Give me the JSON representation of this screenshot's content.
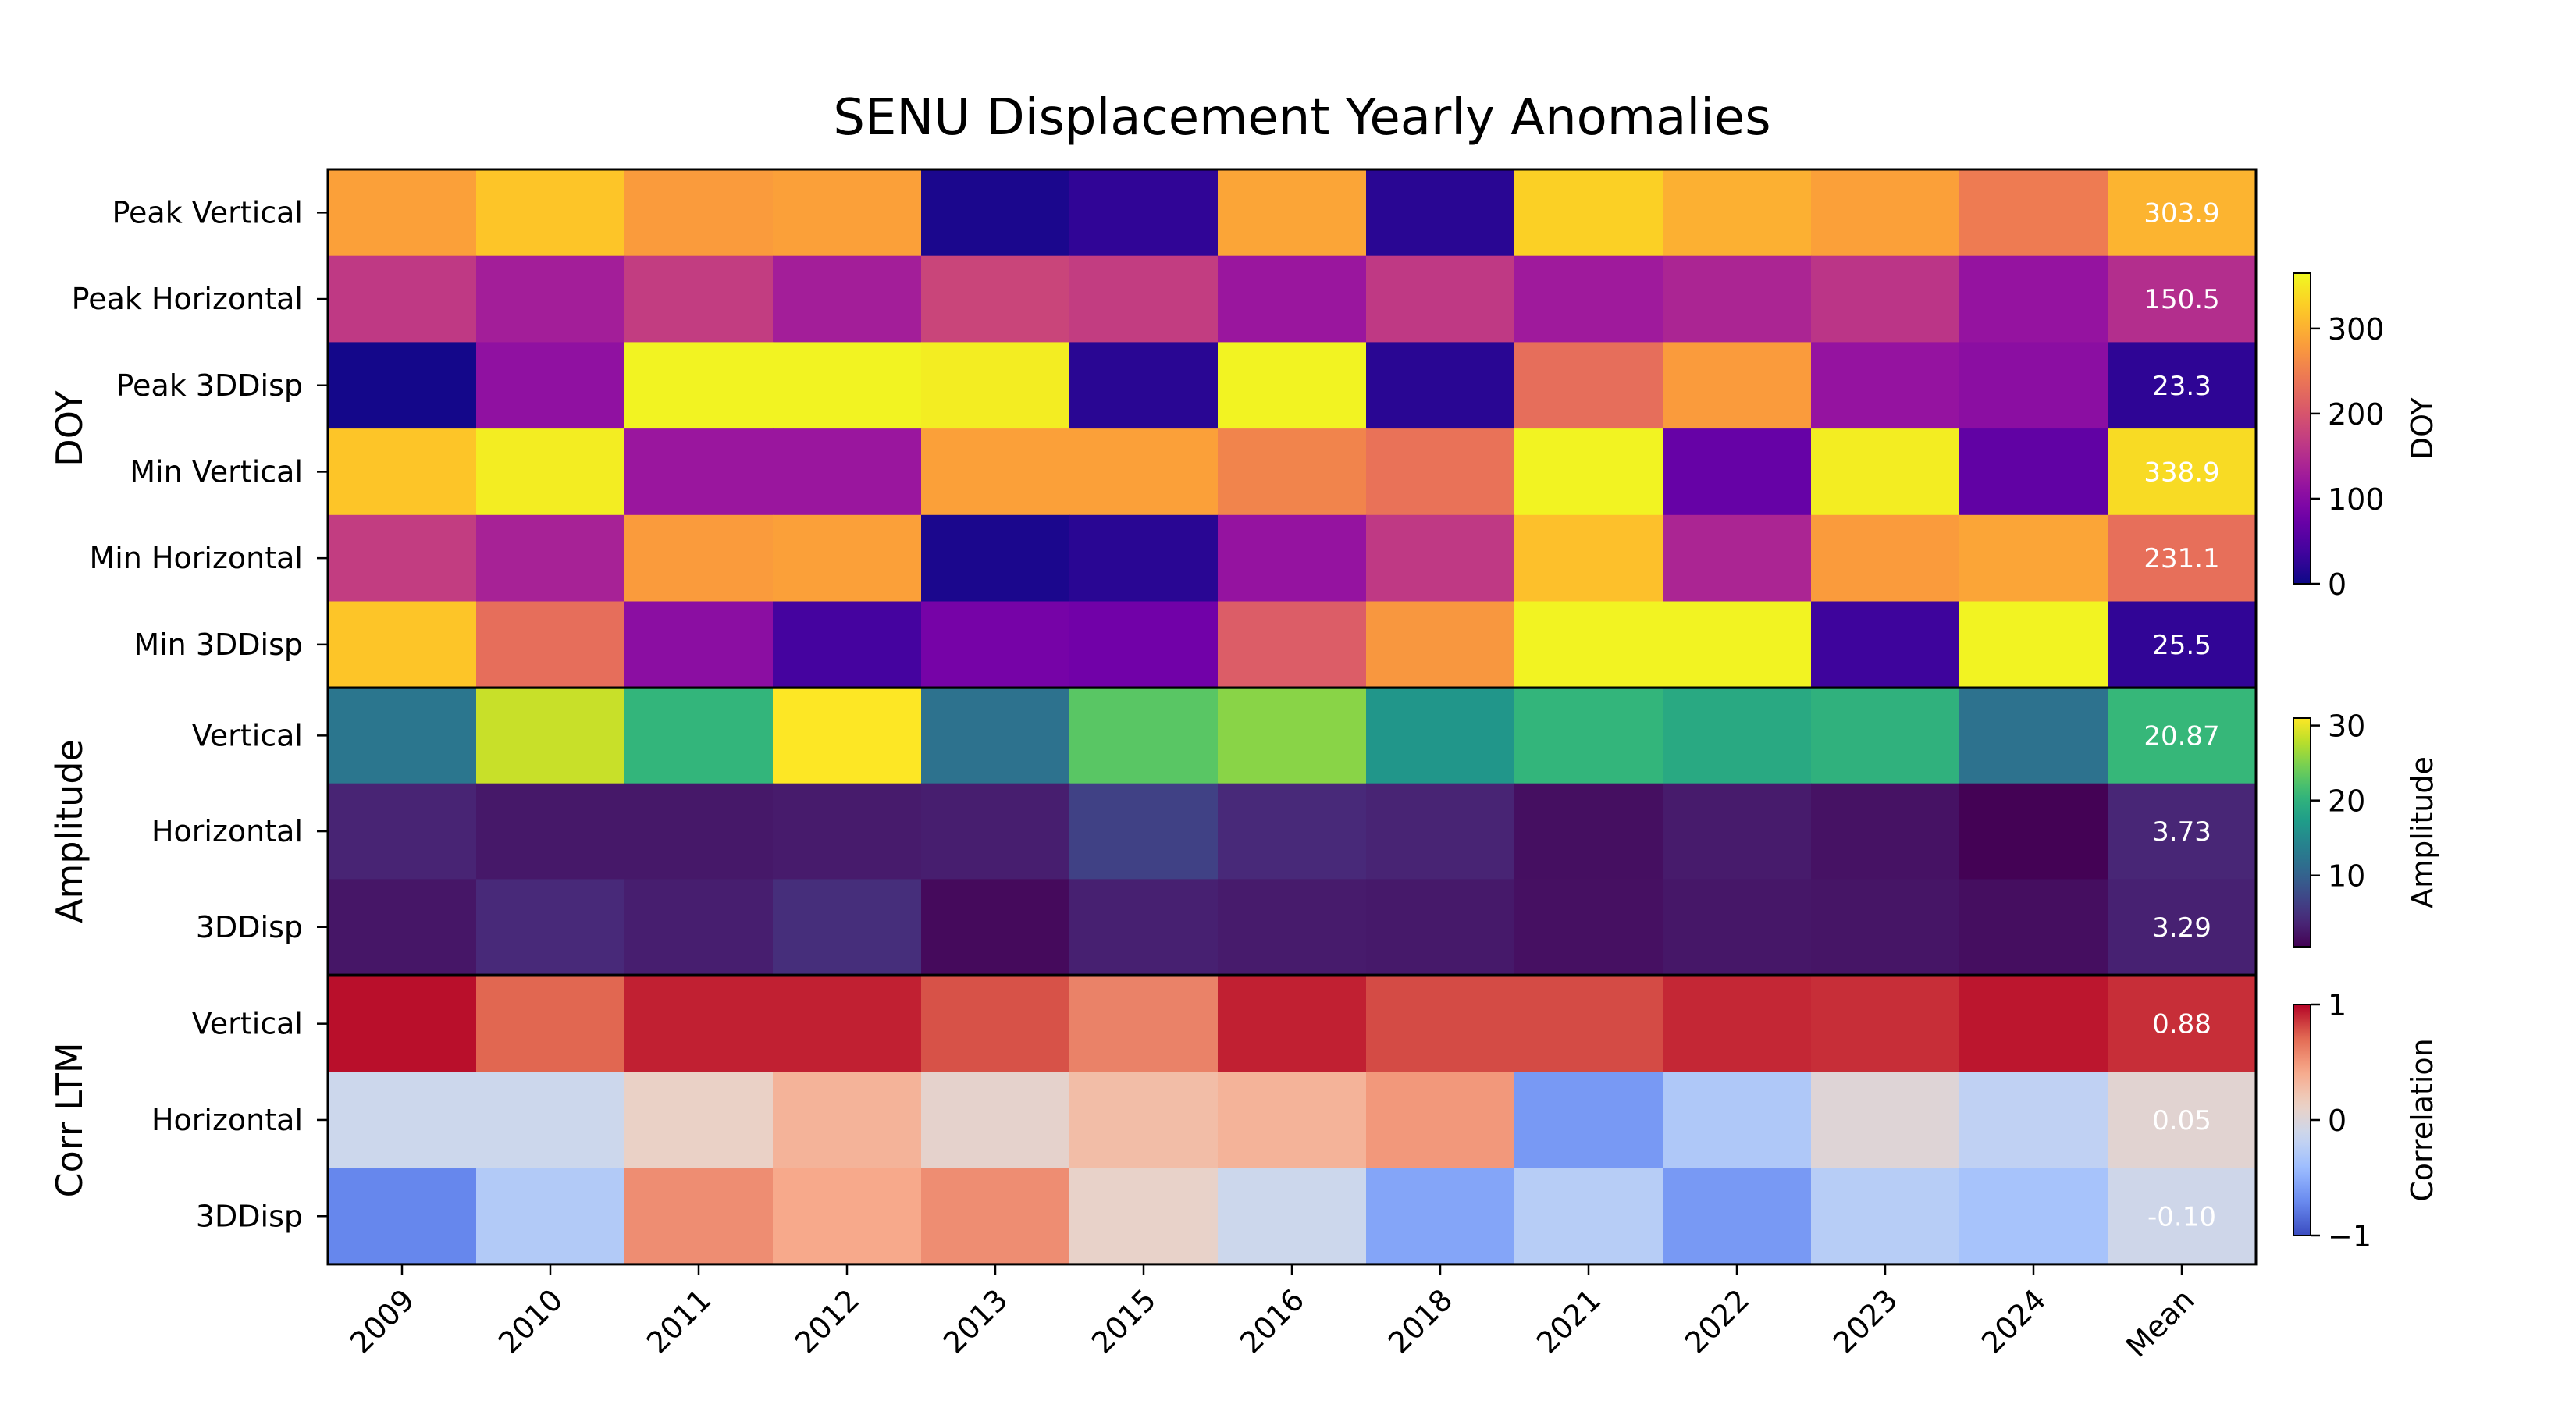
{
  "chart_data": {
    "type": "heatmap",
    "title": "SENU Displacement Yearly Anomalies",
    "x_tick_labels": [
      "2009",
      "2010",
      "2011",
      "2012",
      "2013",
      "2015",
      "2016",
      "2018",
      "2021",
      "2022",
      "2023",
      "2024",
      "Mean"
    ],
    "panels": [
      {
        "group_label": "DOY",
        "colormap": "plasma",
        "colorbar": {
          "label": "DOY",
          "range": [
            0,
            365
          ],
          "ticks": [
            "0",
            "100",
            "200",
            "300"
          ],
          "tick_values": [
            0,
            100,
            200,
            300
          ]
        },
        "rows": [
          {
            "label": "Peak Vertical",
            "values": [
              285,
              320,
              280,
              285,
              10,
              25,
              290,
              20,
              330,
              300,
              285,
              245,
              303.9
            ],
            "mean_label": "303.9"
          },
          {
            "label": "Peak Horizontal",
            "values": [
              165,
              130,
              170,
              130,
              180,
              170,
              120,
              165,
              125,
              140,
              160,
              115,
              150.5
            ],
            "mean_label": "150.5"
          },
          {
            "label": "Peak 3DDisp",
            "values": [
              5,
              110,
              360,
              360,
              355,
              20,
              360,
              20,
              230,
              280,
              115,
              105,
              23.3
            ],
            "mean_label": "23.3"
          },
          {
            "label": "Min Vertical",
            "values": [
              320,
              355,
              120,
              120,
              285,
              285,
              255,
              235,
              360,
              70,
              355,
              65,
              338.9
            ],
            "mean_label": "338.9"
          },
          {
            "label": "Min Horizontal",
            "values": [
              170,
              135,
              280,
              285,
              10,
              20,
              115,
              165,
              315,
              140,
              280,
              290,
              231.1
            ],
            "mean_label": "231.1"
          },
          {
            "label": "Min 3DDisp",
            "values": [
              320,
              230,
              105,
              40,
              85,
              80,
              210,
              275,
              360,
              360,
              35,
              360,
              25.5
            ],
            "mean_label": "25.5"
          }
        ]
      },
      {
        "group_label": "Amplitude",
        "colormap": "viridis",
        "colorbar": {
          "label": "Amplitude",
          "range": [
            0.5,
            31
          ],
          "ticks": [
            "10",
            "20",
            "30"
          ],
          "tick_values": [
            10,
            20,
            30
          ]
        },
        "rows": [
          {
            "label": "Vertical",
            "values": [
              12.5,
              28.5,
              20.5,
              31,
              12,
              23,
              25.5,
              16.5,
              20.5,
              19,
              20,
              12,
              20.87
            ],
            "mean_label": "20.87"
          },
          {
            "label": "Horizontal",
            "values": [
              3.5,
              2.5,
              2.5,
              2.8,
              3.0,
              6.5,
              4.0,
              3.5,
              1.7,
              2.8,
              2.0,
              0.6,
              3.73
            ],
            "mean_label": "3.73"
          },
          {
            "label": "3DDisp",
            "values": [
              2.3,
              4.0,
              3.0,
              4.5,
              1.3,
              3.2,
              2.8,
              2.6,
              1.8,
              2.4,
              2.2,
              1.6,
              3.29
            ],
            "mean_label": "3.29"
          }
        ]
      },
      {
        "group_label": "Corr LTM",
        "colormap": "coolwarm",
        "colorbar": {
          "label": "Correlation",
          "range": [
            -1,
            1
          ],
          "ticks": [
            "−1",
            "0",
            "1"
          ],
          "tick_values": [
            -1,
            0,
            1
          ]
        },
        "rows": [
          {
            "label": "Vertical",
            "values": [
              0.97,
              0.72,
              0.92,
              0.92,
              0.78,
              0.6,
              0.92,
              0.8,
              0.8,
              0.9,
              0.88,
              0.95,
              0.88
            ],
            "mean_label": "0.88"
          },
          {
            "label": "Horizontal",
            "values": [
              -0.12,
              -0.12,
              0.12,
              0.35,
              0.08,
              0.28,
              0.35,
              0.5,
              -0.62,
              -0.3,
              0.02,
              -0.2,
              0.05
            ],
            "mean_label": "0.05"
          },
          {
            "label": "3DDisp",
            "values": [
              -0.72,
              -0.28,
              0.55,
              0.42,
              0.55,
              0.1,
              -0.12,
              -0.55,
              -0.25,
              -0.62,
              -0.25,
              -0.35,
              -0.1
            ],
            "mean_label": "-0.10"
          }
        ]
      }
    ]
  }
}
